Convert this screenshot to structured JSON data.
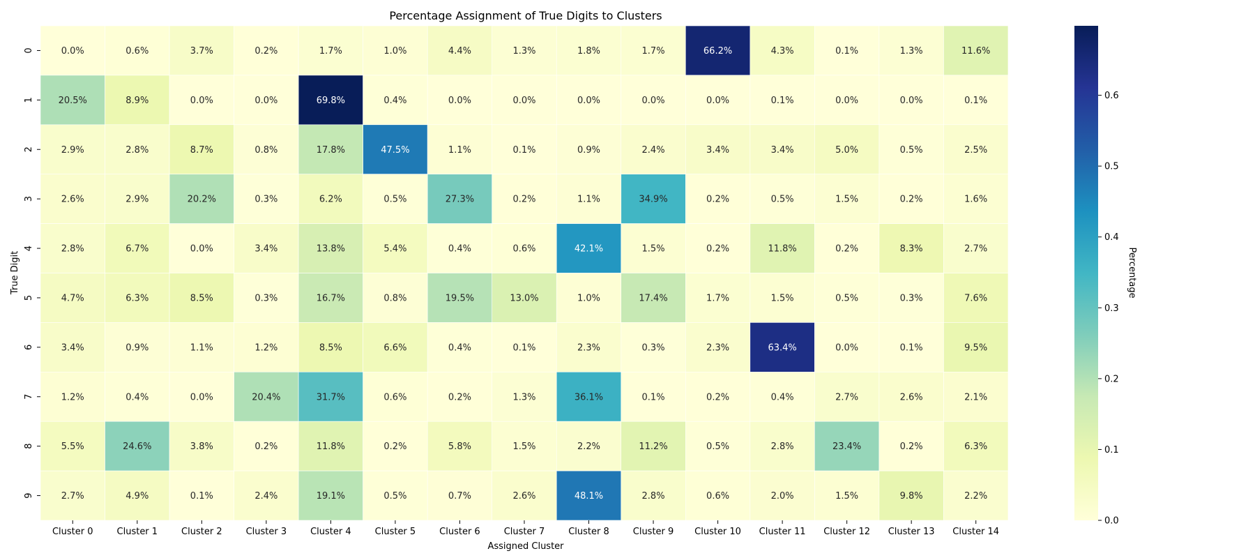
{
  "chart_data": {
    "type": "heatmap",
    "title": "Percentage Assignment of True Digits to Clusters",
    "xlabel": "Assigned Cluster",
    "ylabel": "True Digit",
    "x_categories": [
      "Cluster 0",
      "Cluster 1",
      "Cluster 2",
      "Cluster 3",
      "Cluster 4",
      "Cluster 5",
      "Cluster 6",
      "Cluster 7",
      "Cluster 8",
      "Cluster 9",
      "Cluster 10",
      "Cluster 11",
      "Cluster 12",
      "Cluster 13",
      "Cluster 14"
    ],
    "y_categories": [
      "0",
      "1",
      "2",
      "3",
      "4",
      "5",
      "6",
      "7",
      "8",
      "9"
    ],
    "values": [
      [
        0.0,
        0.006,
        0.037,
        0.002,
        0.017,
        0.01,
        0.044,
        0.013,
        0.018,
        0.017,
        0.662,
        0.043,
        0.001,
        0.013,
        0.116
      ],
      [
        0.205,
        0.089,
        0.0,
        0.0,
        0.698,
        0.004,
        0.0,
        0.0,
        0.0,
        0.0,
        0.0,
        0.001,
        0.0,
        0.0,
        0.001
      ],
      [
        0.029,
        0.028,
        0.087,
        0.008,
        0.178,
        0.475,
        0.011,
        0.001,
        0.009,
        0.024,
        0.034,
        0.034,
        0.05,
        0.005,
        0.025
      ],
      [
        0.026,
        0.029,
        0.202,
        0.003,
        0.062,
        0.005,
        0.273,
        0.002,
        0.011,
        0.349,
        0.002,
        0.005,
        0.015,
        0.002,
        0.016
      ],
      [
        0.028,
        0.067,
        0.0,
        0.034,
        0.138,
        0.054,
        0.004,
        0.006,
        0.421,
        0.015,
        0.002,
        0.118,
        0.002,
        0.083,
        0.027
      ],
      [
        0.047,
        0.063,
        0.085,
        0.003,
        0.167,
        0.008,
        0.195,
        0.13,
        0.01,
        0.174,
        0.017,
        0.015,
        0.005,
        0.003,
        0.076
      ],
      [
        0.034,
        0.009,
        0.011,
        0.012,
        0.085,
        0.066,
        0.004,
        0.001,
        0.023,
        0.003,
        0.023,
        0.634,
        0.0,
        0.001,
        0.095
      ],
      [
        0.012,
        0.004,
        0.0,
        0.204,
        0.317,
        0.006,
        0.002,
        0.013,
        0.361,
        0.001,
        0.002,
        0.004,
        0.027,
        0.026,
        0.021
      ],
      [
        0.055,
        0.246,
        0.038,
        0.002,
        0.118,
        0.002,
        0.058,
        0.015,
        0.022,
        0.112,
        0.005,
        0.028,
        0.234,
        0.002,
        0.063
      ],
      [
        0.027,
        0.049,
        0.001,
        0.024,
        0.191,
        0.005,
        0.007,
        0.026,
        0.481,
        0.028,
        0.006,
        0.02,
        0.015,
        0.098,
        0.022
      ]
    ],
    "colorbar": {
      "label": "Percentage",
      "min": 0.0,
      "max": 0.698,
      "ticks": [
        0.0,
        0.1,
        0.2,
        0.3,
        0.4,
        0.5,
        0.6
      ],
      "tick_labels": [
        "0.0",
        "0.1",
        "0.2",
        "0.3",
        "0.4",
        "0.5",
        "0.6"
      ],
      "colormap": "YlGnBu",
      "colors": [
        "#ffffd9",
        "#edf8b1",
        "#c7e9b4",
        "#7fcdbb",
        "#41b6c4",
        "#1d91c0",
        "#225ea8",
        "#253494",
        "#081d58"
      ]
    },
    "annotation_format": "percent_1dp",
    "legend": "none",
    "grid": false
  }
}
